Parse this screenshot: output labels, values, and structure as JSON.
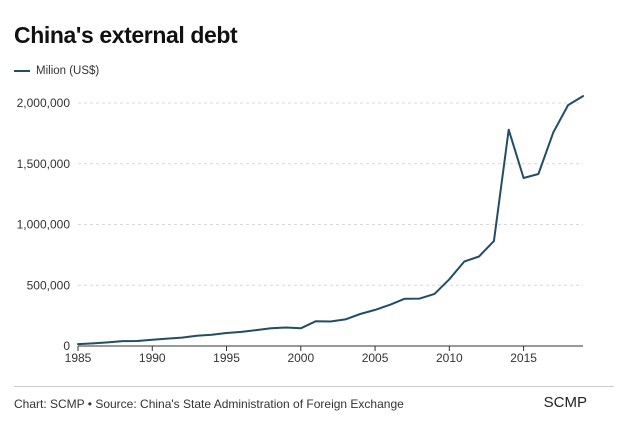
{
  "chart_data": {
    "type": "line",
    "title": "China's external debt",
    "series": [
      {
        "name": "Milion (US$)",
        "color": "#1f4e66",
        "x": [
          1985,
          1986,
          1987,
          1988,
          1989,
          1990,
          1991,
          1992,
          1993,
          1994,
          1995,
          1996,
          1997,
          1998,
          1999,
          2000,
          2001,
          2002,
          2003,
          2004,
          2005,
          2006,
          2007,
          2008,
          2009,
          2010,
          2011,
          2012,
          2013,
          2014,
          2015,
          2016,
          2017,
          2018,
          2019
        ],
        "values": [
          16000,
          21000,
          30000,
          40000,
          41000,
          52000,
          61000,
          69000,
          84000,
          93000,
          107000,
          116000,
          131000,
          146000,
          152000,
          146000,
          203000,
          202000,
          219000,
          263000,
          297000,
          339000,
          389000,
          390000,
          429000,
          549000,
          695000,
          737000,
          863000,
          1780000,
          1383000,
          1416000,
          1758000,
          1983000,
          2057000
        ]
      }
    ],
    "xlabel": "",
    "ylabel": "",
    "xlim": [
      1985,
      2019
    ],
    "ylim": [
      0,
      2000000
    ],
    "xticks": [
      1985,
      1990,
      1995,
      2000,
      2005,
      2010,
      2015
    ],
    "yticks": [
      0,
      500000,
      1000000,
      1500000,
      2000000
    ],
    "xtick_labels": [
      "1985",
      "1990",
      "1995",
      "2000",
      "2005",
      "2010",
      "2015"
    ],
    "ytick_labels": [
      "0",
      "500,000",
      "1,000,000",
      "1,500,000",
      "2,000,000"
    ],
    "legend": "top-left",
    "grid": "horizontal dashed"
  },
  "footer": {
    "source": "Chart: SCMP • Source: China's State Administration of Foreign Exchange",
    "brand": "SCMP"
  }
}
